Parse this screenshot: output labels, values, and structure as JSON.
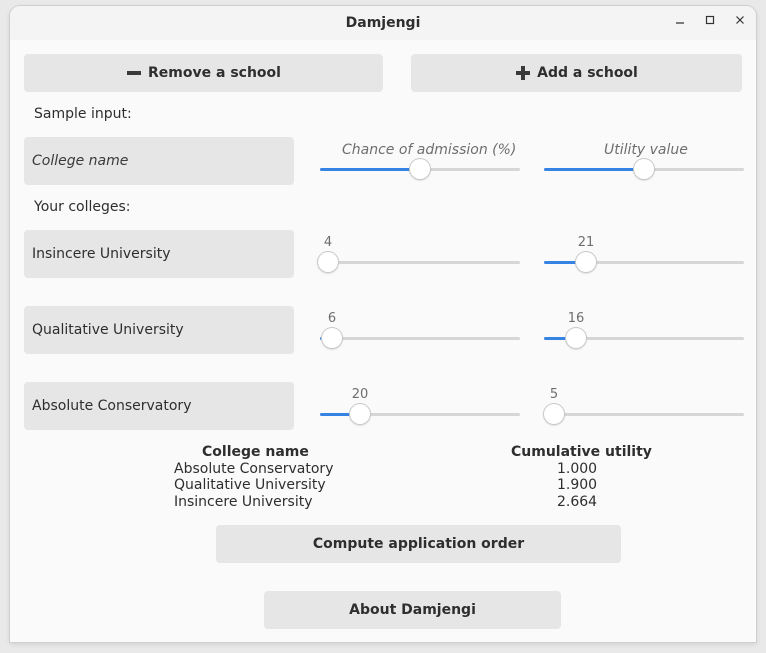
{
  "window": {
    "title": "Damjengi"
  },
  "toolbar": {
    "remove_label": "Remove a school",
    "add_label": "Add a school"
  },
  "sample": {
    "label": "Sample input:",
    "college_placeholder": "College name",
    "chance_header": "Chance of admission (%)",
    "utility_header": "Utility value",
    "chance_value": 50,
    "utility_value": 50
  },
  "colleges_label": "Your colleges:",
  "colleges": [
    {
      "name": "Insincere University",
      "chance": 4,
      "utility": 21
    },
    {
      "name": "Qualitative University",
      "chance": 6,
      "utility": 16
    },
    {
      "name": "Absolute Conservatory",
      "chance": 20,
      "utility": 5
    }
  ],
  "results": {
    "col_name": "College name",
    "col_utility": "Cumulative utility",
    "rows": [
      {
        "name": "Absolute Conservatory",
        "utility": "1.000"
      },
      {
        "name": "Qualitative University",
        "utility": "1.900"
      },
      {
        "name": "Insincere University",
        "utility": "2.664"
      }
    ]
  },
  "actions": {
    "compute_label": "Compute application order",
    "about_label": "About Damjengi"
  },
  "colors": {
    "accent": "#3584e4",
    "button": "#e6e6e6",
    "background": "#fafafa"
  }
}
